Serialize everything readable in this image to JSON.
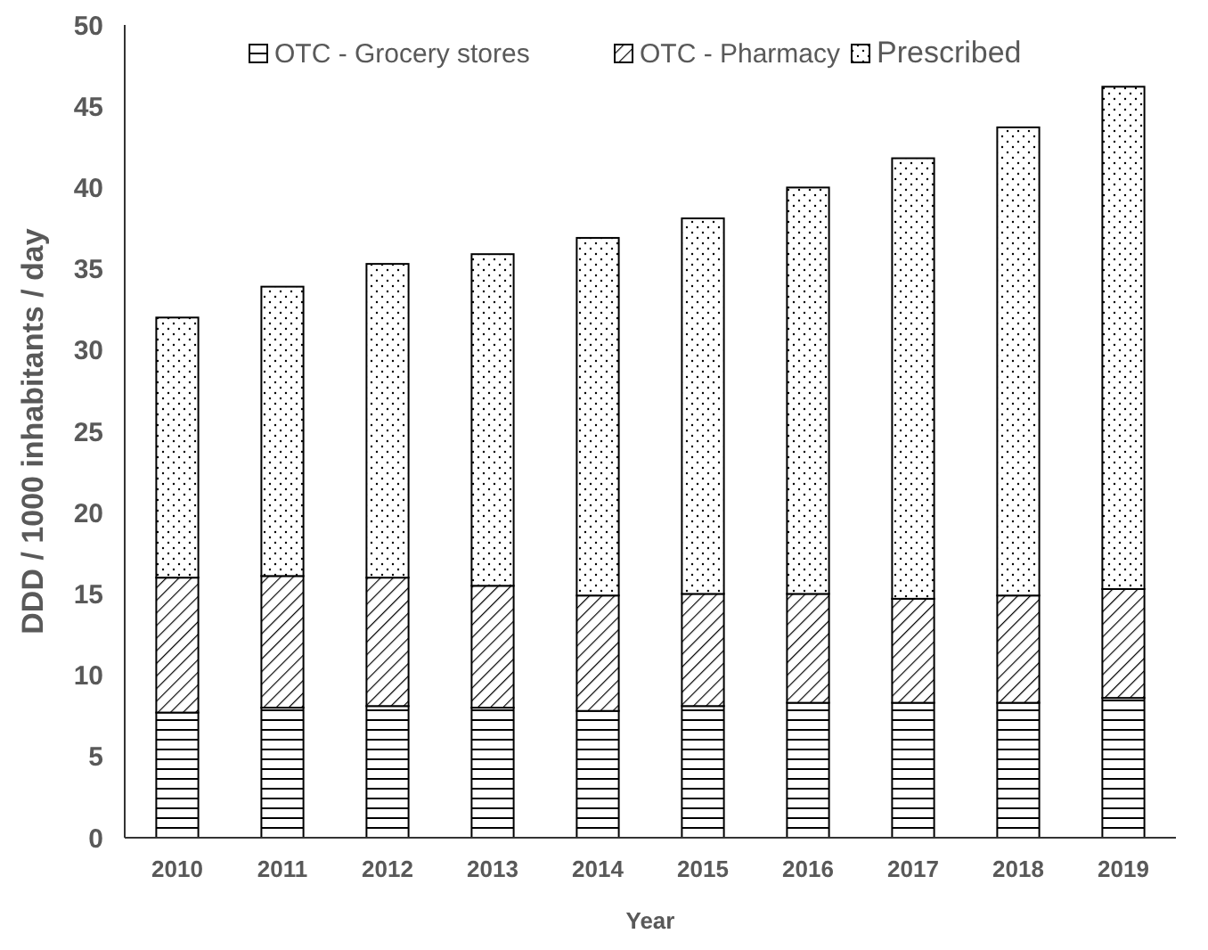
{
  "chart_data": {
    "type": "bar",
    "stacked": true,
    "xlabel": "Year",
    "ylabel": "DDD / 1000 inhabitants / day",
    "categories": [
      "2010",
      "2011",
      "2012",
      "2013",
      "2014",
      "2015",
      "2016",
      "2017",
      "2018",
      "2019"
    ],
    "series": [
      {
        "name": "OTC - Grocery stores",
        "color": "#000000",
        "values": [
          7.7,
          8.0,
          8.1,
          8.0,
          7.8,
          8.1,
          8.3,
          8.3,
          8.3,
          8.6
        ]
      },
      {
        "name": "OTC - Pharmacy",
        "color": "#000000",
        "values": [
          8.3,
          8.1,
          7.9,
          7.5,
          7.1,
          6.9,
          6.7,
          6.4,
          6.6,
          6.7
        ]
      },
      {
        "name": "Prescribed",
        "color": "#000000",
        "values": [
          16.0,
          17.8,
          19.3,
          20.4,
          22.0,
          23.1,
          25.0,
          27.1,
          28.8,
          30.9
        ]
      }
    ],
    "ylim": [
      0,
      50
    ],
    "yticks": [
      0,
      5,
      10,
      15,
      20,
      25,
      30,
      35,
      40,
      45,
      50
    ],
    "grid": false,
    "legend": "top"
  }
}
